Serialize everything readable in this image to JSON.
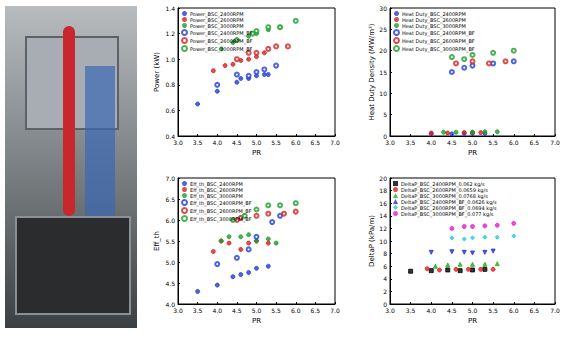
{
  "chart_data": [
    {
      "type": "scatter",
      "x_label": "PR",
      "y_label": "Power (kW)",
      "xlim": [
        3,
        7
      ],
      "xticks": [
        {
          "value": 3,
          "label": "3.0"
        },
        3.5,
        {
          "value": 4,
          "label": "4.0"
        },
        4.5,
        {
          "value": 5,
          "label": "5.0"
        },
        5.5,
        {
          "value": 6,
          "label": "6.0"
        },
        6.5,
        {
          "value": 7,
          "label": "7.0"
        }
      ],
      "ylim": [
        0.4,
        1.4
      ],
      "yticks": [
        0.4,
        0.6,
        0.8,
        {
          "value": 1,
          "label": "1.0"
        },
        1.2,
        1.4
      ],
      "grid": false,
      "legend": "top-left",
      "series": [
        {
          "name": "Power_BSC_2400RPM",
          "color": "#1f3fd6",
          "marker": "circle",
          "x": [
            3.5,
            4.0,
            4.5,
            4.6,
            4.8,
            5.0,
            5.2,
            5.3
          ],
          "values": [
            0.65,
            0.75,
            0.82,
            0.85,
            0.85,
            0.87,
            0.88,
            0.88
          ]
        },
        {
          "name": "Power_BSC_2600RPM",
          "color": "#d42020",
          "marker": "circle",
          "x": [
            3.9,
            4.2,
            4.4,
            4.6,
            4.8,
            5.0,
            5.2
          ],
          "values": [
            0.91,
            0.95,
            0.96,
            0.99,
            1.0,
            1.02,
            1.05
          ]
        },
        {
          "name": "Power_BSC_3000RPM",
          "color": "#1f9e2a",
          "marker": "circle",
          "x": [
            4.1,
            4.4,
            4.5,
            4.8,
            5.0,
            5.3,
            5.6
          ],
          "values": [
            1.08,
            1.13,
            1.15,
            1.18,
            1.2,
            1.23,
            1.25
          ]
        },
        {
          "name": "Power_BSC_2400RPM_BF",
          "color": "#1f3fd6",
          "marker": "open_circle",
          "x": [
            4.0,
            4.5,
            4.8,
            5.0,
            5.2,
            5.5
          ],
          "values": [
            0.8,
            0.88,
            0.87,
            0.9,
            0.92,
            0.95
          ]
        },
        {
          "name": "Power_BSC_2600RPM_BF",
          "color": "#d42020",
          "marker": "open_circle",
          "x": [
            4.5,
            4.8,
            5.0,
            5.3,
            5.5,
            5.8
          ],
          "values": [
            1.0,
            1.05,
            1.05,
            1.08,
            1.1,
            1.1
          ]
        },
        {
          "name": "Power_BSC_3000RPM_BF",
          "color": "#1f9e2a",
          "marker": "open_circle",
          "x": [
            4.5,
            4.9,
            5.0,
            5.3,
            5.6,
            6.0
          ],
          "values": [
            1.15,
            1.2,
            1.22,
            1.25,
            1.25,
            1.3
          ]
        }
      ]
    },
    {
      "type": "scatter",
      "x_label": "PR",
      "y_label": "Heat Duty Density (MW/m³)",
      "xlim": [
        3,
        7
      ],
      "xticks": [
        {
          "value": 3,
          "label": "3.0"
        },
        3.5,
        {
          "value": 4,
          "label": "4.0"
        },
        4.5,
        {
          "value": 5,
          "label": "5.0"
        },
        5.5,
        {
          "value": 6,
          "label": "6.0"
        },
        6.5,
        {
          "value": 7,
          "label": "7.0"
        }
      ],
      "ylim": [
        0,
        30
      ],
      "yticks": [
        0,
        5,
        10,
        15,
        20,
        25,
        30
      ],
      "grid": false,
      "legend": "top-left",
      "series": [
        {
          "name": "Heat Duty_BSC_2400RPM",
          "color": "#1f3fd6",
          "marker": "circle",
          "x": [
            4.0,
            4.5,
            4.8,
            5.0,
            5.3
          ],
          "values": [
            0.5,
            0.5,
            0.6,
            0.6,
            0.6
          ]
        },
        {
          "name": "Heat Duty_BSC_2600RPM",
          "color": "#d42020",
          "marker": "circle",
          "x": [
            4.0,
            4.4,
            4.8,
            5.0,
            5.2
          ],
          "values": [
            0.7,
            0.7,
            0.8,
            0.8,
            0.8
          ]
        },
        {
          "name": "Heat Duty_BSC_3000RPM",
          "color": "#1f9e2a",
          "marker": "circle",
          "x": [
            4.3,
            4.6,
            5.0,
            5.3,
            5.6
          ],
          "values": [
            0.9,
            0.9,
            0.9,
            1.0,
            1.0
          ]
        },
        {
          "name": "Heat Duty_BSC_2400RPM_BF",
          "color": "#1f3fd6",
          "marker": "open_circle",
          "x": [
            4.5,
            4.8,
            5.0,
            5.5,
            6.0
          ],
          "values": [
            15,
            16,
            16.5,
            17,
            17.5
          ]
        },
        {
          "name": "Heat Duty_BSC_2600RPM_BF",
          "color": "#d42020",
          "marker": "open_circle",
          "x": [
            4.6,
            5.0,
            5.4,
            5.8
          ],
          "values": [
            17,
            17.5,
            17,
            17.5
          ]
        },
        {
          "name": "Heat Duty_BSC_3000RPM_BF",
          "color": "#1f9e2a",
          "marker": "open_circle",
          "x": [
            4.5,
            4.8,
            5.0,
            5.5,
            6.0
          ],
          "values": [
            18.5,
            18,
            19,
            19.5,
            20
          ]
        }
      ]
    },
    {
      "type": "scatter",
      "x_label": "PR",
      "y_label": "Eff_th",
      "xlim": [
        3,
        7
      ],
      "xticks": [
        {
          "value": 3,
          "label": "3.0"
        },
        3.5,
        {
          "value": 4,
          "label": "4.0"
        },
        4.5,
        {
          "value": 5,
          "label": "5.0"
        },
        5.5,
        {
          "value": 6,
          "label": "6.0"
        },
        6.5,
        {
          "value": 7,
          "label": "7.0"
        }
      ],
      "ylim": [
        4,
        7
      ],
      "yticks": [
        {
          "value": 4,
          "label": "4.0"
        },
        4.5,
        {
          "value": 5,
          "label": "5.0"
        },
        5.5,
        {
          "value": 6,
          "label": "6.0"
        },
        6.5,
        {
          "value": 7,
          "label": "7.0"
        }
      ],
      "grid": false,
      "legend": "top-left",
      "series": [
        {
          "name": "Eff_th_BSC_2400RPM",
          "color": "#1f3fd6",
          "marker": "circle",
          "x": [
            3.5,
            4.0,
            4.4,
            4.6,
            4.8,
            5.0,
            5.3
          ],
          "values": [
            4.3,
            4.45,
            4.65,
            4.7,
            4.75,
            4.85,
            4.9
          ]
        },
        {
          "name": "Eff_th_BSC_2600RPM",
          "color": "#d42020",
          "marker": "circle",
          "x": [
            3.9,
            4.1,
            4.3,
            4.6,
            4.8,
            5.0,
            5.3
          ],
          "values": [
            5.25,
            5.5,
            5.45,
            5.3,
            5.45,
            5.5,
            5.45
          ]
        },
        {
          "name": "Eff_th_BSC_3000RPM",
          "color": "#1f9e2a",
          "marker": "circle",
          "x": [
            4.1,
            4.3,
            4.6,
            4.8,
            5.0,
            5.3,
            5.5
          ],
          "values": [
            5.5,
            5.6,
            5.6,
            5.65,
            5.5,
            5.55,
            5.45
          ]
        },
        {
          "name": "Eff_th_BSC_2400RPM_BF",
          "color": "#1f3fd6",
          "marker": "open_circle",
          "x": [
            4.0,
            4.5,
            4.8,
            5.0,
            5.4,
            5.6
          ],
          "values": [
            4.95,
            5.1,
            5.3,
            5.6,
            5.95,
            6.1
          ]
        },
        {
          "name": "Eff_th_BSC_2600RPM_BF",
          "color": "#d42020",
          "marker": "open_circle",
          "x": [
            4.5,
            4.6,
            5.0,
            5.3,
            5.7,
            6.0
          ],
          "values": [
            6.0,
            6.05,
            6.1,
            6.15,
            6.15,
            6.2
          ]
        },
        {
          "name": "Eff_th_BSC_3000RPM_BF",
          "color": "#1f9e2a",
          "marker": "open_circle",
          "x": [
            4.4,
            4.7,
            5.0,
            5.3,
            5.6,
            6.0
          ],
          "values": [
            6.0,
            6.1,
            6.25,
            6.35,
            6.35,
            6.4
          ]
        }
      ]
    },
    {
      "type": "scatter",
      "x_label": "PR",
      "y_label": "DeltaP (kPa/m)",
      "xlim": [
        3,
        7
      ],
      "xticks": [
        {
          "value": 3,
          "label": "3.0"
        },
        3.5,
        {
          "value": 4,
          "label": "4.0"
        },
        4.5,
        {
          "value": 5,
          "label": "5.0"
        },
        5.5,
        {
          "value": 6,
          "label": "6.0"
        },
        6.5,
        {
          "value": 7,
          "label": "7.0"
        }
      ],
      "ylim": [
        0,
        20
      ],
      "yticks": [
        0,
        2,
        4,
        6,
        8,
        10,
        12,
        14,
        16,
        18,
        20
      ],
      "grid": false,
      "legend": "top-left",
      "series": [
        {
          "name": "DeltaP_BSC_2400RPM_0.062 kg/s",
          "color": "#000000",
          "marker": "square",
          "x": [
            3.5,
            4.0,
            4.4,
            4.7,
            5.0,
            5.3
          ],
          "values": [
            5.2,
            5.3,
            5.4,
            5.3,
            5.4,
            5.5
          ]
        },
        {
          "name": "DeltaP_BSC_2600RPM_0.0659 kg/s",
          "color": "#e02020",
          "marker": "circle",
          "x": [
            3.9,
            4.2,
            4.6,
            4.9,
            5.2,
            5.5
          ],
          "values": [
            5.6,
            5.4,
            5.5,
            5.5,
            5.5,
            5.5
          ]
        },
        {
          "name": "DeltaP_BSC_3000RPM_0.0768 kg/s",
          "color": "#22b022",
          "marker": "triangle",
          "x": [
            4.1,
            4.4,
            4.7,
            5.0,
            5.3,
            5.6
          ],
          "values": [
            6.0,
            6.2,
            6.3,
            6.3,
            6.3,
            6.4
          ]
        },
        {
          "name": "DeltaP_BSC_2400RPM_BF_0.0626 kg/s",
          "color": "#1f2fd6",
          "marker": "triangle_down",
          "x": [
            4.0,
            4.5,
            4.8,
            5.0,
            5.3,
            5.5
          ],
          "values": [
            8.2,
            8.3,
            8.2,
            8.1,
            8.2,
            8.4
          ]
        },
        {
          "name": "DeltaP_BSC_2600RPM_BF_0.0694 kg/s",
          "color": "#22c8e0",
          "marker": "diamond",
          "x": [
            4.5,
            4.8,
            5.0,
            5.3,
            5.6,
            6.0
          ],
          "values": [
            10.5,
            10.3,
            10.5,
            10.6,
            10.6,
            10.8
          ]
        },
        {
          "name": "DeltaP_BSC_3000RPM_BF_0.077 kg/s",
          "color": "#e020d0",
          "marker": "circle",
          "x": [
            4.5,
            4.8,
            5.0,
            5.3,
            5.6,
            6.0
          ],
          "values": [
            12.0,
            12.3,
            12.3,
            12.4,
            12.5,
            12.8
          ]
        }
      ]
    }
  ]
}
